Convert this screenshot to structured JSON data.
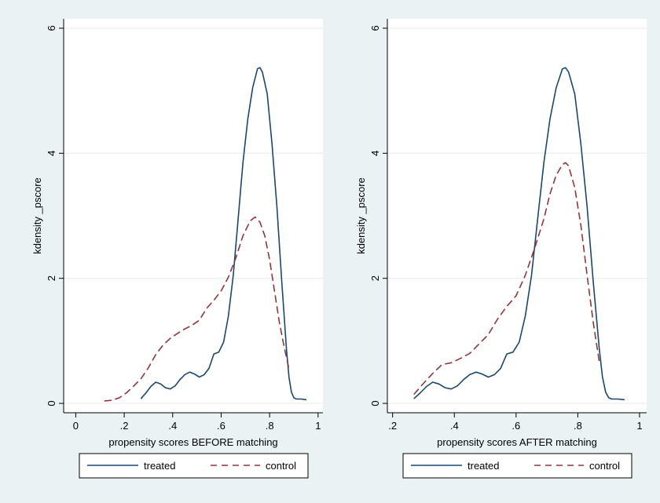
{
  "colors": {
    "background": "#eaf2f3",
    "plot_region": "#ffffff",
    "grid": "#e9eef2",
    "axis": "#000000",
    "treated": "#1a476f",
    "control": "#90353b",
    "text": "#000000"
  },
  "chart_data": [
    {
      "type": "line",
      "title": "",
      "xlabel": "propensity scores BEFORE matching",
      "ylabel": "kdensity _pscore",
      "xlim": [
        -0.05,
        1.02
      ],
      "ylim": [
        -0.15,
        6.15
      ],
      "xticks": [
        0,
        0.2,
        0.4,
        0.6,
        0.8,
        1
      ],
      "xtick_labels": [
        "0",
        ".2",
        ".4",
        ".6",
        ".8",
        "1"
      ],
      "yticks": [
        0,
        2,
        4,
        6
      ],
      "ytick_labels": [
        "0",
        "2",
        "4",
        "6"
      ],
      "grid": true,
      "legend": {
        "position": "bottom",
        "entries": [
          "treated",
          "control"
        ]
      },
      "series": [
        {
          "name": "treated",
          "style": "solid",
          "x": [
            0.27,
            0.29,
            0.31,
            0.33,
            0.35,
            0.37,
            0.39,
            0.41,
            0.43,
            0.45,
            0.47,
            0.49,
            0.51,
            0.53,
            0.55,
            0.57,
            0.59,
            0.61,
            0.63,
            0.65,
            0.67,
            0.69,
            0.71,
            0.73,
            0.75,
            0.76,
            0.77,
            0.79,
            0.81,
            0.83,
            0.85,
            0.87,
            0.88,
            0.89,
            0.9,
            0.91,
            0.93,
            0.95
          ],
          "y": [
            0.08,
            0.17,
            0.27,
            0.34,
            0.31,
            0.25,
            0.23,
            0.28,
            0.38,
            0.46,
            0.5,
            0.47,
            0.42,
            0.46,
            0.56,
            0.79,
            0.82,
            0.98,
            1.4,
            2.05,
            2.95,
            3.85,
            4.55,
            5.05,
            5.35,
            5.37,
            5.3,
            4.95,
            4.15,
            3.15,
            1.95,
            0.85,
            0.42,
            0.18,
            0.09,
            0.07,
            0.07,
            0.06
          ]
        },
        {
          "name": "control",
          "style": "dashed",
          "x": [
            0.12,
            0.15,
            0.18,
            0.21,
            0.24,
            0.27,
            0.3,
            0.33,
            0.36,
            0.39,
            0.42,
            0.45,
            0.48,
            0.51,
            0.54,
            0.57,
            0.6,
            0.63,
            0.66,
            0.69,
            0.72,
            0.74,
            0.76,
            0.78,
            0.8,
            0.82,
            0.84,
            0.86,
            0.88
          ],
          "y": [
            0.04,
            0.05,
            0.09,
            0.17,
            0.28,
            0.4,
            0.57,
            0.78,
            0.93,
            1.04,
            1.12,
            1.19,
            1.25,
            1.33,
            1.52,
            1.65,
            1.8,
            2.02,
            2.32,
            2.68,
            2.92,
            2.98,
            2.9,
            2.68,
            2.3,
            1.8,
            1.3,
            0.9,
            0.55
          ]
        }
      ]
    },
    {
      "type": "line",
      "title": "",
      "xlabel": "propensity scores AFTER matching",
      "ylabel": "kdensity _pscore",
      "xlim": [
        0.183,
        1.023
      ],
      "ylim": [
        -0.15,
        6.15
      ],
      "xticks": [
        0.2,
        0.4,
        0.6,
        0.8,
        1
      ],
      "xtick_labels": [
        ".2",
        ".4",
        ".6",
        ".8",
        "1"
      ],
      "yticks": [
        0,
        2,
        4,
        6
      ],
      "ytick_labels": [
        "0",
        "2",
        "4",
        "6"
      ],
      "grid": true,
      "legend": {
        "position": "bottom",
        "entries": [
          "treated",
          "control"
        ]
      },
      "series": [
        {
          "name": "treated",
          "style": "solid",
          "x": [
            0.27,
            0.29,
            0.31,
            0.33,
            0.35,
            0.37,
            0.39,
            0.41,
            0.43,
            0.45,
            0.47,
            0.49,
            0.51,
            0.53,
            0.55,
            0.57,
            0.59,
            0.61,
            0.63,
            0.65,
            0.67,
            0.69,
            0.71,
            0.73,
            0.75,
            0.76,
            0.77,
            0.79,
            0.81,
            0.83,
            0.85,
            0.87,
            0.88,
            0.89,
            0.9,
            0.91,
            0.93,
            0.95
          ],
          "y": [
            0.08,
            0.17,
            0.27,
            0.34,
            0.31,
            0.25,
            0.23,
            0.28,
            0.38,
            0.46,
            0.5,
            0.47,
            0.42,
            0.46,
            0.56,
            0.79,
            0.82,
            0.98,
            1.4,
            2.05,
            2.95,
            3.85,
            4.55,
            5.05,
            5.35,
            5.37,
            5.3,
            4.95,
            4.15,
            3.15,
            1.95,
            0.85,
            0.42,
            0.18,
            0.09,
            0.07,
            0.07,
            0.06
          ]
        },
        {
          "name": "control",
          "style": "dashed",
          "x": [
            0.27,
            0.3,
            0.33,
            0.36,
            0.39,
            0.42,
            0.45,
            0.48,
            0.51,
            0.54,
            0.57,
            0.6,
            0.63,
            0.66,
            0.69,
            0.71,
            0.73,
            0.75,
            0.76,
            0.77,
            0.79,
            0.81,
            0.83,
            0.85,
            0.87
          ],
          "y": [
            0.15,
            0.32,
            0.48,
            0.62,
            0.65,
            0.72,
            0.8,
            0.95,
            1.1,
            1.35,
            1.55,
            1.72,
            2.05,
            2.48,
            2.95,
            3.35,
            3.65,
            3.82,
            3.85,
            3.8,
            3.45,
            2.85,
            2.05,
            1.3,
            0.65
          ]
        }
      ]
    }
  ]
}
